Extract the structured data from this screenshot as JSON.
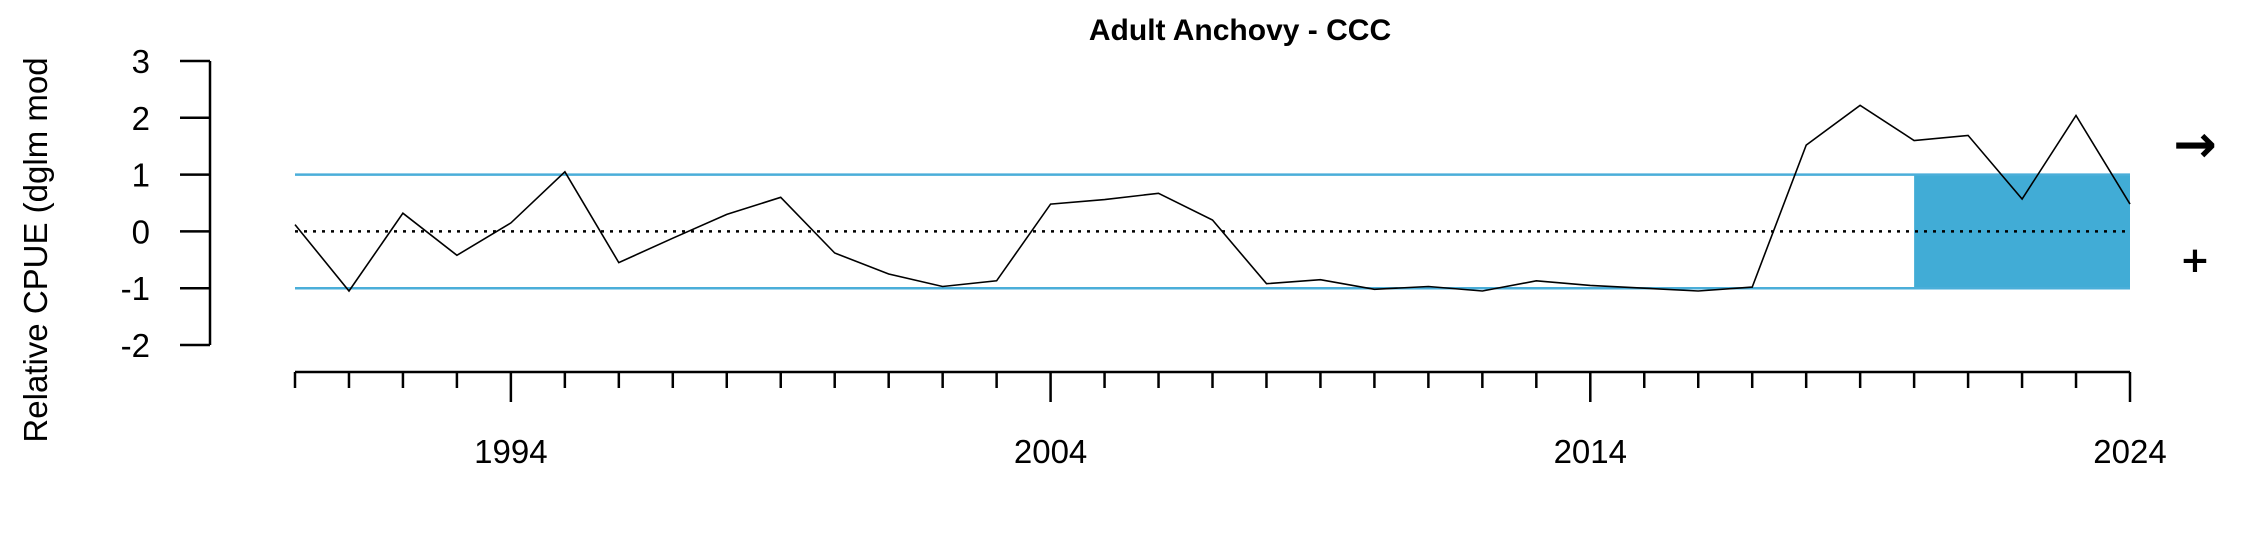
{
  "chart_data": {
    "type": "line",
    "title": "Adult Anchovy - CCC",
    "ylabel": "Relative CPUE (dglm mod",
    "xlabel": "",
    "xlim": [
      1990,
      2024
    ],
    "ylim": [
      -2,
      3
    ],
    "y_ticks": [
      3,
      2,
      1,
      0,
      -1,
      -2
    ],
    "x_major_ticks": [
      1994,
      2004,
      2014,
      2024
    ],
    "x_minor_ticks": [
      1990,
      1991,
      1992,
      1993,
      1994,
      1995,
      1996,
      1997,
      1998,
      1999,
      2000,
      2001,
      2002,
      2003,
      2004,
      2005,
      2006,
      2007,
      2008,
      2009,
      2010,
      2011,
      2012,
      2013,
      2014,
      2015,
      2016,
      2017,
      2018,
      2019,
      2020,
      2021,
      2022,
      2023,
      2024
    ],
    "reference_lines": {
      "mean": 0,
      "upper": 1,
      "lower": -1,
      "band_color": "#4aaed9",
      "mean_style": "dotted"
    },
    "highlight_region": {
      "x_start": 2020,
      "x_end": 2024,
      "y_start": -1,
      "y_end": 1,
      "color": "#41acd6"
    },
    "trend_symbol": "→",
    "status_symbol": "+",
    "series": [
      {
        "color": "#000000",
        "x": [
          1990,
          1991,
          1992,
          1993,
          1994,
          1995,
          1996,
          1997,
          1998,
          1999,
          2000,
          2001,
          2002,
          2003,
          2004,
          2005,
          2006,
          2007,
          2008,
          2009,
          2010,
          2011,
          2012,
          2013,
          2014,
          2015,
          2016,
          2017,
          2018,
          2019,
          2020,
          2021,
          2022,
          2023,
          2024
        ],
        "y": [
          0.12,
          -1.05,
          0.32,
          -0.42,
          0.15,
          1.05,
          -0.55,
          -0.12,
          0.3,
          0.6,
          -0.38,
          -0.75,
          -0.97,
          -0.87,
          0.48,
          0.56,
          0.67,
          0.2,
          -0.92,
          -0.85,
          -1.02,
          -0.97,
          -1.05,
          -0.87,
          -0.95,
          -1.0,
          -1.05,
          -0.98,
          1.52,
          2.22,
          1.6,
          1.69,
          0.57,
          2.04,
          0.48
        ]
      }
    ]
  }
}
